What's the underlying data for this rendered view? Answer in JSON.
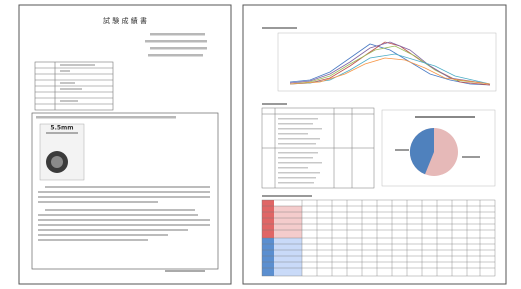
{
  "left_page": {
    "title": "試 験 成 績 書",
    "photo_label": "5.5mm"
  }
}
